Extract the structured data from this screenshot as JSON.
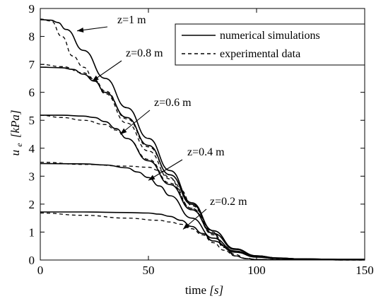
{
  "chart_data": {
    "type": "line",
    "xlabel": "time [s]",
    "xlabel_main": "time",
    "xlabel_unit": "[s]",
    "ylabel": "u_e [kPa]",
    "ylabel_symbol": "u",
    "ylabel_subscript": "e",
    "ylabel_unit": "[kPa]",
    "xlim": [
      0,
      150
    ],
    "ylim": [
      0,
      9
    ],
    "xticks": [
      "0",
      "50",
      "100",
      "150"
    ],
    "yticks": [
      "0",
      "1",
      "2",
      "3",
      "4",
      "5",
      "6",
      "7",
      "8",
      "9"
    ],
    "grid": false,
    "legend_position": "top-right",
    "legend": [
      {
        "label": "numerical simulations",
        "style": "solid"
      },
      {
        "label": "experimental data",
        "style": "dashed"
      }
    ],
    "annotations": [
      {
        "text": "z=1 m",
        "target": [
          17,
          8.2
        ]
      },
      {
        "text": "z=0.8 m",
        "target": [
          24,
          6.4
        ]
      },
      {
        "text": "z=0.6 m",
        "target": [
          37,
          4.5
        ]
      },
      {
        "text": "z=0.4 m",
        "target": [
          50,
          2.85
        ]
      },
      {
        "text": "z=0.2 m",
        "target": [
          66,
          1.1
        ]
      }
    ],
    "series": [
      {
        "label": "z=1 m",
        "style": "solid",
        "x": [
          0,
          5,
          8,
          12,
          20,
          30,
          40,
          50,
          60,
          70,
          80,
          90,
          100,
          110,
          120,
          130,
          140,
          150
        ],
        "y": [
          8.6,
          8.58,
          8.5,
          8.25,
          7.5,
          6.5,
          5.45,
          4.35,
          3.2,
          2.05,
          1.05,
          0.4,
          0.15,
          0.07,
          0.04,
          0.03,
          0.02,
          0.02
        ]
      },
      {
        "label": "z=1 m",
        "style": "dashed",
        "x": [
          0,
          5,
          10,
          15,
          20,
          25,
          30,
          40,
          50,
          60,
          70,
          80,
          85,
          90,
          95,
          100,
          110,
          150
        ],
        "y": [
          8.62,
          8.55,
          8.0,
          7.3,
          6.9,
          6.45,
          5.95,
          4.9,
          3.9,
          2.9,
          1.85,
          0.9,
          0.45,
          0.15,
          0.05,
          0.02,
          0.01,
          0.0
        ]
      },
      {
        "label": "z=0.8 m",
        "style": "solid",
        "x": [
          0,
          10,
          15,
          20,
          25,
          30,
          40,
          50,
          60,
          70,
          80,
          90,
          100,
          110,
          120,
          130,
          140,
          150
        ],
        "y": [
          6.9,
          6.88,
          6.82,
          6.65,
          6.4,
          6.0,
          5.1,
          4.1,
          3.05,
          2.0,
          1.05,
          0.4,
          0.15,
          0.07,
          0.04,
          0.03,
          0.02,
          0.02
        ]
      },
      {
        "label": "z=0.8 m",
        "style": "dashed",
        "x": [
          0,
          10,
          20,
          25,
          30,
          40,
          50,
          60,
          70,
          80,
          85,
          90,
          95,
          100,
          110,
          150
        ],
        "y": [
          7.0,
          6.92,
          6.7,
          6.45,
          6.05,
          5.05,
          4.05,
          3.05,
          2.0,
          1.0,
          0.5,
          0.15,
          0.05,
          0.02,
          0.01,
          0.0
        ]
      },
      {
        "label": "z=0.6 m",
        "style": "solid",
        "x": [
          0,
          10,
          20,
          25,
          30,
          35,
          40,
          50,
          60,
          70,
          80,
          90,
          100,
          110,
          120,
          130,
          140,
          150
        ],
        "y": [
          5.18,
          5.18,
          5.15,
          5.1,
          4.95,
          4.7,
          4.35,
          3.55,
          2.7,
          1.8,
          0.95,
          0.38,
          0.14,
          0.07,
          0.04,
          0.03,
          0.02,
          0.02
        ]
      },
      {
        "label": "z=0.6 m",
        "style": "dashed",
        "x": [
          0,
          10,
          20,
          30,
          35,
          40,
          50,
          60,
          70,
          80,
          85,
          90,
          95,
          100,
          110,
          150
        ],
        "y": [
          5.18,
          5.1,
          5.0,
          4.85,
          4.65,
          4.35,
          3.6,
          2.75,
          1.85,
          0.95,
          0.5,
          0.15,
          0.05,
          0.02,
          0.01,
          0.0
        ]
      },
      {
        "label": "z=0.4 m",
        "style": "solid",
        "x": [
          0,
          20,
          30,
          40,
          45,
          50,
          55,
          60,
          70,
          80,
          90,
          100,
          110,
          120,
          130,
          140,
          150
        ],
        "y": [
          3.45,
          3.44,
          3.4,
          3.3,
          3.15,
          2.95,
          2.65,
          2.3,
          1.5,
          0.78,
          0.32,
          0.12,
          0.06,
          0.04,
          0.03,
          0.02,
          0.02
        ]
      },
      {
        "label": "z=0.4 m",
        "style": "dashed",
        "x": [
          0,
          20,
          40,
          50,
          55,
          60,
          65,
          70,
          80,
          85,
          90,
          95,
          100,
          110,
          150
        ],
        "y": [
          3.5,
          3.42,
          3.36,
          3.32,
          3.2,
          2.95,
          2.5,
          1.95,
          0.95,
          0.5,
          0.2,
          0.06,
          0.02,
          0.01,
          0.0
        ]
      },
      {
        "label": "z=0.2 m",
        "style": "solid",
        "x": [
          0,
          20,
          40,
          50,
          55,
          60,
          65,
          70,
          75,
          80,
          90,
          100,
          110,
          120,
          130,
          140,
          150
        ],
        "y": [
          1.72,
          1.72,
          1.7,
          1.68,
          1.64,
          1.56,
          1.42,
          1.2,
          0.95,
          0.68,
          0.28,
          0.1,
          0.05,
          0.03,
          0.02,
          0.02,
          0.02
        ]
      },
      {
        "label": "z=0.2 m",
        "style": "dashed",
        "x": [
          0,
          20,
          40,
          55,
          60,
          65,
          70,
          75,
          80,
          85,
          90,
          95,
          100,
          150
        ],
        "y": [
          1.68,
          1.6,
          1.5,
          1.42,
          1.36,
          1.28,
          1.12,
          0.9,
          0.62,
          0.35,
          0.15,
          0.05,
          0.02,
          0.0
        ]
      }
    ]
  }
}
